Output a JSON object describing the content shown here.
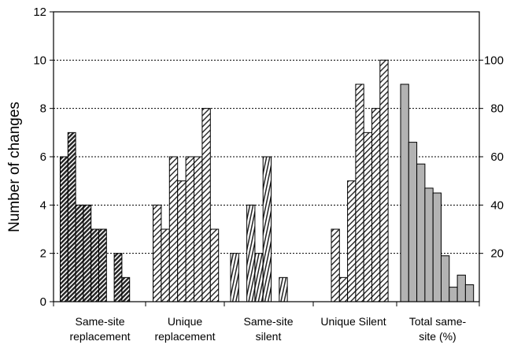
{
  "chart_data": {
    "type": "bar",
    "ylabel": "Number of changes",
    "ylim": [
      0,
      12
    ],
    "y_ticks": [
      0,
      2,
      4,
      6,
      8,
      10,
      12
    ],
    "y2lim": [
      0,
      120
    ],
    "y2_ticks": [
      20,
      40,
      60,
      80,
      100
    ],
    "grid": "horizontal dotted",
    "groups": [
      {
        "label": [
          "Same-site",
          "replacement"
        ],
        "pattern": "dense-hatch",
        "axis": "left",
        "values": [
          6,
          7,
          4,
          4,
          3,
          3,
          null,
          2,
          1
        ]
      },
      {
        "label": [
          "Unique",
          "replacement"
        ],
        "pattern": "sparse-hatch",
        "axis": "left",
        "values": [
          4,
          3,
          6,
          5,
          6,
          6,
          8,
          3
        ]
      },
      {
        "label": [
          "Same-site",
          "silent"
        ],
        "pattern": "vertical-hatch",
        "axis": "left",
        "values": [
          2,
          null,
          4,
          2,
          6,
          null,
          1
        ]
      },
      {
        "label": [
          "Unique Silent"
        ],
        "pattern": "sparse-hatch",
        "axis": "left",
        "values": [
          3,
          1,
          5,
          9,
          7,
          8,
          10
        ]
      },
      {
        "label": [
          "Total same-",
          "site (%)"
        ],
        "pattern": "solid-grey",
        "axis": "right",
        "values": [
          90,
          66,
          57,
          47,
          45,
          19,
          6,
          11,
          7
        ]
      }
    ]
  }
}
